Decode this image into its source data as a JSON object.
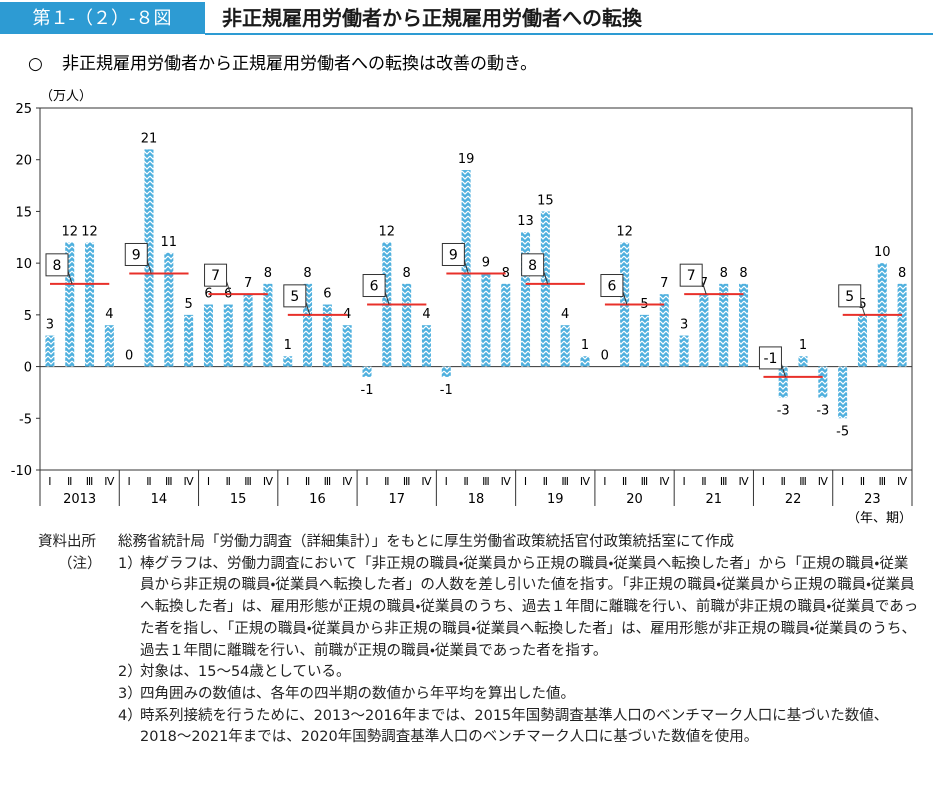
{
  "header": {
    "figure_number": "第１-（２）-８図",
    "title": "非正規雇用労働者から正規雇用労働者への転換"
  },
  "subtitle": {
    "marker": "○",
    "text": "非正規雇用労働者から正規雇用労働者への転換は改善の動き。"
  },
  "chart_data": {
    "type": "bar",
    "y_unit": "（万人）",
    "x_unit": "（年、期）",
    "groups": [
      "2013",
      "14",
      "15",
      "16",
      "17",
      "18",
      "19",
      "20",
      "21",
      "22",
      "23"
    ],
    "categories": [
      "Ⅰ",
      "Ⅱ",
      "Ⅲ",
      "Ⅳ",
      "Ⅰ",
      "Ⅱ",
      "Ⅲ",
      "Ⅳ",
      "Ⅰ",
      "Ⅱ",
      "Ⅲ",
      "Ⅳ",
      "Ⅰ",
      "Ⅱ",
      "Ⅲ",
      "Ⅳ",
      "Ⅰ",
      "Ⅱ",
      "Ⅲ",
      "Ⅳ",
      "Ⅰ",
      "Ⅱ",
      "Ⅲ",
      "Ⅳ",
      "Ⅰ",
      "Ⅱ",
      "Ⅲ",
      "Ⅳ",
      "Ⅰ",
      "Ⅱ",
      "Ⅲ",
      "Ⅳ",
      "Ⅰ",
      "Ⅱ",
      "Ⅲ",
      "Ⅳ",
      "Ⅰ",
      "Ⅱ",
      "Ⅲ",
      "Ⅳ",
      "Ⅰ",
      "Ⅱ",
      "Ⅲ",
      "Ⅳ"
    ],
    "values": [
      3,
      12,
      12,
      4,
      0,
      21,
      11,
      5,
      6,
      6,
      7,
      8,
      1,
      8,
      6,
      4,
      -1,
      12,
      8,
      4,
      -1,
      19,
      9,
      8,
      13,
      15,
      4,
      1,
      0,
      12,
      5,
      7,
      3,
      7,
      8,
      8,
      0,
      -3,
      1,
      -3,
      -5,
      5,
      10,
      8
    ],
    "color": "#4fb0de",
    "annual_averages": [
      8,
      9,
      7,
      5,
      6,
      9,
      8,
      6,
      7,
      -1,
      5
    ],
    "average_color": "#e8302a",
    "ylim": [
      -10,
      25
    ],
    "yticks": [
      -10,
      -5,
      0,
      5,
      10,
      15,
      20,
      25
    ]
  },
  "source": {
    "label": "資料出所",
    "text": "総務省統計局「労働力調査（詳細集計）」をもとに厚生労働省政策統括官付政策統括室にて作成"
  },
  "notes": {
    "label": "（注）",
    "items": [
      {
        "number": "1）",
        "text": "棒グラフは、労働力調査において「非正規の職員・従業員から正規の職員・従業員へ転換した者」から「正規の職員・従業員から非正規の職員・従業員へ転換した者」の人数を差し引いた値を指す。「非正規の職員・従業員から正規の職員・従業員へ転換した者」は、雇用形態が正規の職員・従業員のうち、過去１年間に離職を行い、前職が非正規の職員・従業員であった者を指し、「正規の職員・従業員から非正規の職員・従業員へ転換した者」は、雇用形態が非正規の職員・従業員のうち、過去１年間に離職を行い、前職が正規の職員・従業員であった者を指す。"
      },
      {
        "number": "2）",
        "text": "対象は、15～54歳としている。"
      },
      {
        "number": "3）",
        "text": "四角囲みの数値は、各年の四半期の数値から年平均を算出した値。"
      },
      {
        "number": "4）",
        "text": "時系列接続を行うために、2013～2016年までは、2015年国勢調査基準人口のベンチマーク人口に基づいた数値、2018～2021年までは、2020年国勢調査基準人口のベンチマーク人口に基づいた数値を使用。"
      }
    ]
  }
}
